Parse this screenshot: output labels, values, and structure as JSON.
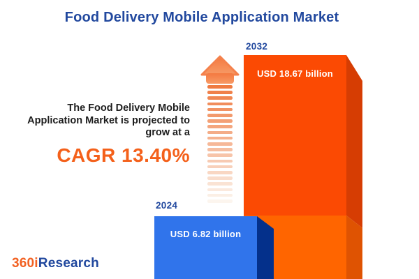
{
  "title": "Food Delivery Mobile Application Market",
  "intro": {
    "lines": [
      "The Food Delivery Mobile",
      "Application Market is projected to",
      "grow at a"
    ],
    "cagr_text": "CAGR 13.40%"
  },
  "chart_data": {
    "type": "bar",
    "title": "Food Delivery Mobile Application Market",
    "categories": [
      "2024",
      "2032"
    ],
    "values": [
      6.82,
      18.67
    ],
    "unit": "USD billion",
    "value_labels": [
      "USD 6.82 billion",
      "USD 18.67 billion"
    ],
    "cagr_percent": 13.4,
    "legend": "none",
    "grid": false,
    "bar_style": "3d-cuboid, bottom-anchored, cropped at image bottom"
  },
  "bars": {
    "b2024": {
      "year": "2024",
      "value_label": "USD 6.82 billion"
    },
    "b2032": {
      "year": "2032",
      "value_label": "USD 18.67 billion"
    }
  },
  "arrow": {
    "stripe_count": 21,
    "color_start": "#EF7B42",
    "color_end": "#FCF5EE",
    "head_color_top": "#F47940",
    "head_color_bottom": "#F79A66"
  },
  "logo": {
    "part1": "360i",
    "part2": "Research"
  },
  "colors": {
    "title_blue": "#21489E",
    "intro_text": "#1D1D1D",
    "cagr_orange": "#F4601A",
    "orange_face_top": "#FB4A03",
    "orange_face_bottom": "#FF6500",
    "orange_side_top": "#D63D03",
    "orange_side_bottom": "#DF5302",
    "blue_face": "#3074EB",
    "blue_side": "#04308B",
    "white_label": "#FFFFFF"
  }
}
